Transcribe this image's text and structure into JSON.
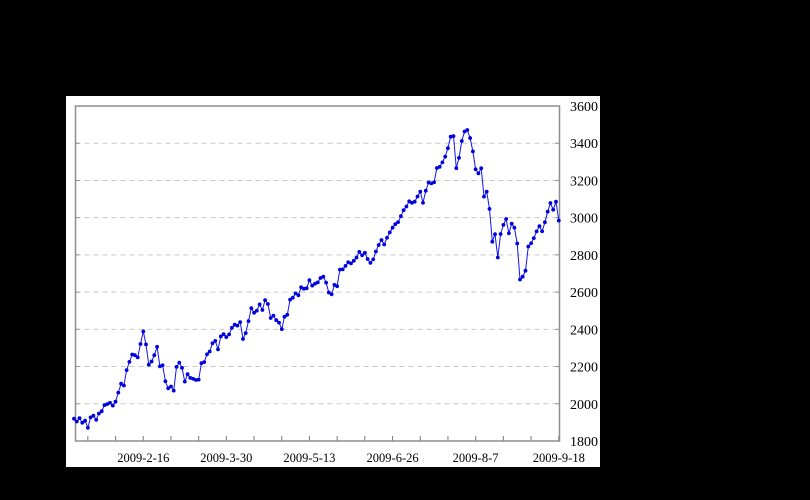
{
  "canvas": {
    "background_color": "#000000",
    "figure_background_color": "#ffffff",
    "frame_color": "#8e8e8e",
    "gridline_color": "#c8c8c8",
    "tick_color": "#777777"
  },
  "chart_data": {
    "type": "line",
    "title": "",
    "xlabel": "",
    "ylabel": "",
    "legend": "none",
    "grid": "horizontal dashed lines at every 200 units",
    "marker": "filled circle",
    "marker_color": "#0000dd",
    "line_color": "#1414f0",
    "ylim": [
      1800,
      3600
    ],
    "y_tick_labels": [
      "3600",
      "3400",
      "3200",
      "3000",
      "2800",
      "2600",
      "2400",
      "2200",
      "2000",
      "1800"
    ],
    "y_tick_values": [
      3600,
      3400,
      3200,
      3000,
      2800,
      2600,
      2400,
      2200,
      2000,
      1800
    ],
    "x_tick_labels": [
      "2009-2-16",
      "2009-3-30",
      "2009-5-13",
      "2009-6-26",
      "2009-8-7",
      "2009-9-18"
    ],
    "x_label_point_indices": [
      25,
      55,
      85,
      115,
      145,
      175
    ],
    "x_minor_tick_every_points": 10,
    "x_axis_note": "daily closes, first point early January 2009, one point per trading day",
    "values": [
      1920,
      1905,
      1923,
      1898,
      1909,
      1871,
      1927,
      1936,
      1914,
      1948,
      1960,
      1993,
      1998,
      2005,
      1990,
      2011,
      2060,
      2108,
      2098,
      2181,
      2225,
      2265,
      2261,
      2249,
      2321,
      2389,
      2319,
      2210,
      2227,
      2261,
      2306,
      2201,
      2207,
      2121,
      2083,
      2093,
      2071,
      2198,
      2221,
      2193,
      2119,
      2159,
      2139,
      2134,
      2128,
      2130,
      2218,
      2224,
      2266,
      2281,
      2325,
      2338,
      2292,
      2362,
      2374,
      2358,
      2373,
      2408,
      2425,
      2420,
      2439,
      2348,
      2380,
      2444,
      2514,
      2489,
      2500,
      2534,
      2504,
      2557,
      2536,
      2461,
      2474,
      2449,
      2436,
      2401,
      2468,
      2478,
      2560,
      2570,
      2593,
      2583,
      2626,
      2618,
      2621,
      2664,
      2635,
      2645,
      2652,
      2676,
      2683,
      2651,
      2598,
      2588,
      2639,
      2632,
      2721,
      2722,
      2741,
      2760,
      2754,
      2768,
      2786,
      2816,
      2798,
      2811,
      2778,
      2757,
      2776,
      2818,
      2853,
      2880,
      2856,
      2892,
      2921,
      2946,
      2965,
      2976,
      3008,
      3040,
      3060,
      3088,
      3080,
      3086,
      3114,
      3140,
      3080,
      3145,
      3189,
      3184,
      3190,
      3267,
      3273,
      3297,
      3328,
      3373,
      3435,
      3438,
      3266,
      3321,
      3412,
      3463,
      3471,
      3428,
      3356,
      3260,
      3238,
      3265,
      3113,
      3140,
      3047,
      2871,
      2911,
      2786,
      2912,
      2961,
      2993,
      2916,
      2968,
      2946,
      2861,
      2668,
      2683,
      2715,
      2845,
      2862,
      2890,
      2926,
      2954,
      2927,
      2975,
      3032,
      3079,
      3043,
      3086,
      2984
    ]
  }
}
